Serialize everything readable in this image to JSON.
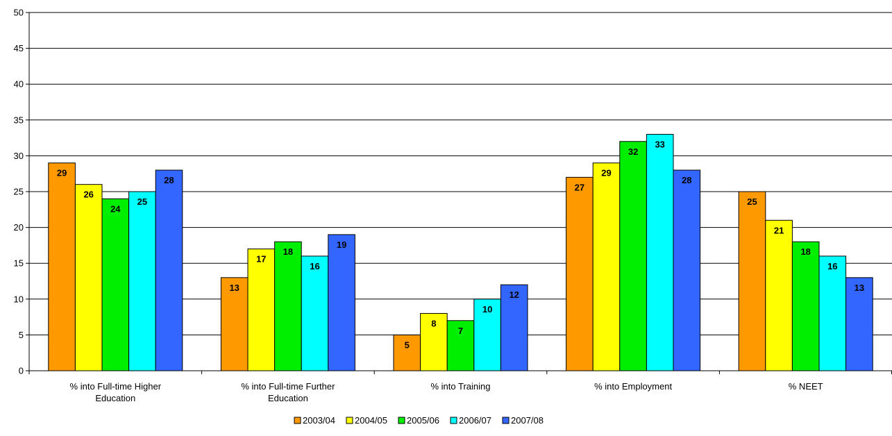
{
  "chart_data": {
    "type": "bar",
    "title": "",
    "xlabel": "",
    "ylabel": "",
    "ylim": [
      0,
      50
    ],
    "ytick_step": 5,
    "grid": true,
    "legend_position": "bottom",
    "categories": [
      [
        "% into Full-time Higher",
        "Education"
      ],
      [
        "% into Full-time Further",
        "Education"
      ],
      [
        "% into Training"
      ],
      [
        "% into Employment"
      ],
      [
        "% NEET"
      ]
    ],
    "series": [
      {
        "name": "2003/04",
        "color": "#FF9900",
        "values": [
          29,
          13,
          5,
          27,
          25
        ]
      },
      {
        "name": "2004/05",
        "color": "#FFFF00",
        "values": [
          26,
          17,
          8,
          29,
          21
        ]
      },
      {
        "name": "2005/06",
        "color": "#00EE00",
        "values": [
          24,
          18,
          7,
          32,
          18
        ]
      },
      {
        "name": "2006/07",
        "color": "#00FFFF",
        "values": [
          25,
          16,
          10,
          33,
          16
        ]
      },
      {
        "name": "2007/08",
        "color": "#3366FF",
        "values": [
          28,
          19,
          12,
          28,
          13
        ]
      }
    ]
  }
}
